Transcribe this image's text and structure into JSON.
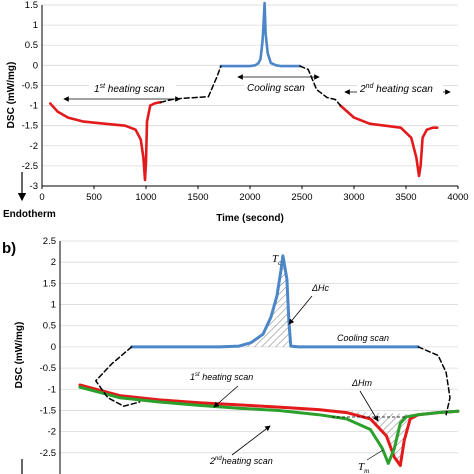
{
  "chart_data": [
    {
      "type": "line",
      "title": "",
      "xlabel": "Time (second)",
      "ylabel": "DSC (mW/mg)",
      "xlim": [
        0,
        4000
      ],
      "ylim": [
        -3,
        1.5
      ],
      "x_ticks": [
        "0",
        "500",
        "1000",
        "1500",
        "2000",
        "2500",
        "3000",
        "3500",
        "4000"
      ],
      "y_ticks": [
        "1.5",
        "1",
        "0.5",
        "0",
        "-0.5",
        "-1",
        "-1.5",
        "-2",
        "-2.5",
        "-3"
      ],
      "endotherm_label": "Endotherm",
      "grid": true,
      "series": [
        {
          "name": "1st heating scan",
          "color": "#e31a1c",
          "x": [
            80,
            150,
            250,
            400,
            600,
            800,
            900,
            950,
            975,
            990,
            1000,
            1010,
            1040,
            1080,
            1110,
            1140
          ],
          "y": [
            -0.95,
            -1.15,
            -1.3,
            -1.4,
            -1.45,
            -1.5,
            -1.6,
            -1.85,
            -2.3,
            -2.85,
            -2.4,
            -1.4,
            -1.0,
            -0.95,
            -0.93,
            -0.92
          ]
        },
        {
          "name": "Cooling scan",
          "color": "#4a86c8",
          "x": [
            1720,
            1800,
            1900,
            2000,
            2050,
            2080,
            2100,
            2110,
            2120,
            2130,
            2140,
            2150,
            2170,
            2200,
            2250,
            2300,
            2400,
            2480
          ],
          "y": [
            -0.02,
            -0.02,
            -0.02,
            -0.02,
            0.0,
            0.05,
            0.15,
            0.35,
            0.6,
            1.0,
            1.55,
            0.8,
            0.3,
            0.06,
            0.0,
            -0.02,
            -0.02,
            -0.02
          ]
        },
        {
          "name": "2nd heating scan",
          "color": "#e31a1c",
          "x": [
            2870,
            3000,
            3150,
            3300,
            3450,
            3550,
            3600,
            3625,
            3640,
            3660,
            3700,
            3760,
            3800
          ],
          "y": [
            -1.0,
            -1.3,
            -1.45,
            -1.5,
            -1.55,
            -1.8,
            -2.3,
            -2.75,
            -2.5,
            -1.8,
            -1.6,
            -1.55,
            -1.55
          ]
        },
        {
          "name": "transition",
          "color": "#000000",
          "style": "dashed",
          "x": [
            1140,
            1250,
            1350,
            1480,
            1600,
            1680,
            1720,
            null,
            2480,
            2560,
            2640,
            2740,
            2820,
            2870
          ],
          "y": [
            -0.92,
            -0.85,
            -0.82,
            -0.8,
            -0.78,
            -0.3,
            -0.02,
            null,
            -0.02,
            -0.1,
            -0.6,
            -0.8,
            -0.85,
            -1.0
          ]
        }
      ],
      "annotations": {
        "first_heating": {
          "pre": "1",
          "sup": "st",
          "post": " heating scan"
        },
        "cooling": "Cooling scan",
        "second_heating": {
          "pre": "2",
          "sup": "nd",
          "post": " heating scan"
        }
      }
    },
    {
      "type": "line",
      "panel_label": "b)",
      "title": "",
      "xlabel": "",
      "ylabel": "DSC (mW/mg)",
      "xlim": [
        0,
        100
      ],
      "ylim": [
        -3,
        2.5
      ],
      "y_ticks": [
        "2.5",
        "2",
        "1.5",
        "1",
        "0.5",
        "0",
        "-0.5",
        "-1",
        "-1.5",
        "-2",
        "-2.5"
      ],
      "grid": true,
      "series": [
        {
          "name": "Cooling scan",
          "color": "#4a86c8",
          "x": [
            18,
            30,
            40,
            45,
            48,
            51,
            53,
            54.5,
            55.5,
            56,
            57,
            57.5,
            58,
            60,
            65,
            75,
            90
          ],
          "y": [
            0.0,
            0.0,
            0.0,
            0.02,
            0.1,
            0.3,
            0.7,
            1.2,
            1.8,
            2.15,
            1.6,
            0.6,
            0.02,
            0.0,
            0.0,
            0.0,
            0.0
          ]
        },
        {
          "name": "1st heating scan",
          "color": "#e31a1c",
          "x": [
            5,
            15,
            25,
            35,
            45,
            55,
            65,
            72,
            78,
            82,
            84,
            85.5,
            86.5,
            88,
            90,
            95,
            100
          ],
          "y": [
            -0.9,
            -1.15,
            -1.25,
            -1.32,
            -1.37,
            -1.42,
            -1.48,
            -1.55,
            -1.7,
            -2.1,
            -2.6,
            -2.8,
            -2.2,
            -1.7,
            -1.6,
            -1.55,
            -1.52
          ]
        },
        {
          "name": "2nd heating scan",
          "color": "#2ca02c",
          "x": [
            5,
            15,
            25,
            35,
            45,
            55,
            65,
            72,
            78,
            81,
            82.5,
            84,
            85.5,
            87,
            90,
            95,
            100
          ],
          "y": [
            -0.95,
            -1.2,
            -1.3,
            -1.38,
            -1.45,
            -1.5,
            -1.6,
            -1.7,
            -1.95,
            -2.4,
            -2.75,
            -2.4,
            -1.8,
            -1.65,
            -1.6,
            -1.55,
            -1.52
          ]
        },
        {
          "name": "transition",
          "color": "#000000",
          "style": "dashed",
          "x": [
            18,
            13,
            9,
            12,
            16,
            20,
            null,
            90,
            95,
            97,
            98,
            97
          ],
          "y": [
            0.0,
            -0.4,
            -0.8,
            -1.2,
            -1.4,
            -1.3,
            null,
            0.0,
            -0.2,
            -0.6,
            -1.2,
            -1.6
          ]
        }
      ],
      "annotations": {
        "tc": {
          "main": "T",
          "sub": "c"
        },
        "dhc": "ΔHc",
        "cooling": "Cooling scan",
        "first_heating": {
          "pre": "1",
          "sup": "st",
          "post": " heating scan"
        },
        "dhm": "ΔHm",
        "second_heating": {
          "pre": "2",
          "sup": "nd",
          "post": "heating scan"
        },
        "tm": {
          "main": "T",
          "sub": "m"
        }
      }
    }
  ]
}
